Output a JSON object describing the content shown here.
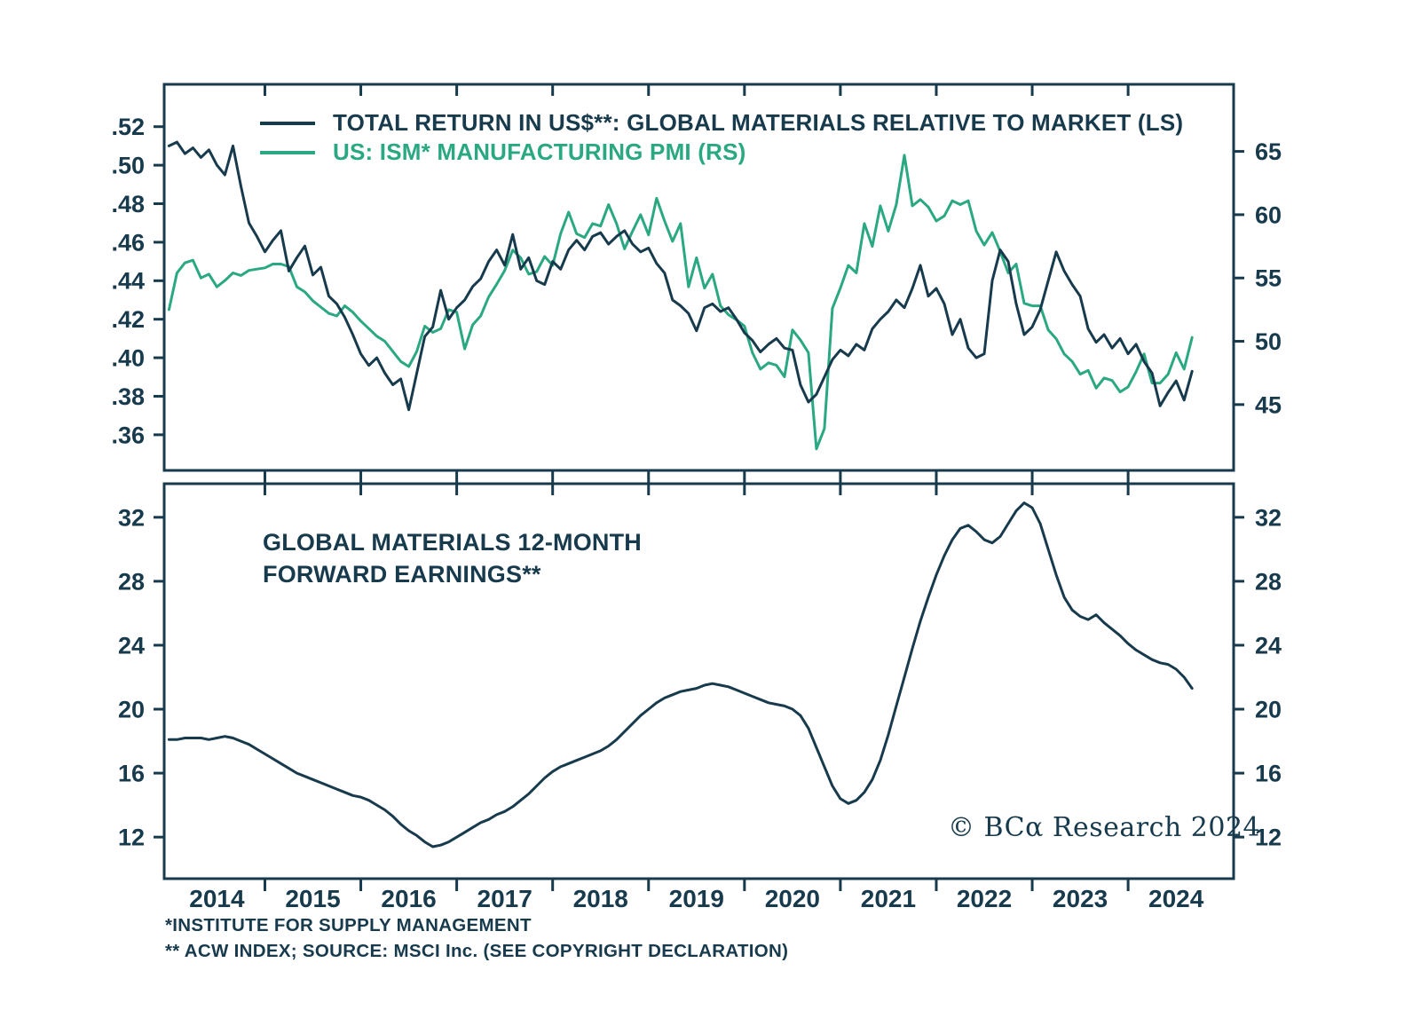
{
  "colors": {
    "dark": "#173a4d",
    "green": "#2aa882",
    "background": "#ffffff"
  },
  "legend": [
    {
      "label": "TOTAL RETURN IN US$**: GLOBAL MATERIALS RELATIVE TO MARKET (LS)",
      "color": "#173a4d"
    },
    {
      "label": "US: ISM* MANUFACTURING PMI (RS)",
      "color": "#2aa882"
    }
  ],
  "annotations": {
    "bottom_panel_line1": "GLOBAL MATERIALS 12-MONTH",
    "bottom_panel_line2": "FORWARD EARNINGS**",
    "copyright": "© BCα Research 2024"
  },
  "footnotes": [
    "*INSTITUTE FOR SUPPLY MANAGEMENT",
    "** ACW INDEX; SOURCE: MSCI Inc. (SEE COPYRIGHT DECLARATION)"
  ],
  "chart_data": [
    {
      "type": "line",
      "panel": "top",
      "x_unit": "decimal_year_monthly",
      "x_start": 2013.5,
      "x_step": 0.0833333,
      "xlim": [
        2013.45,
        2024.6
      ],
      "x_tick_years": [
        2014,
        2015,
        2016,
        2017,
        2018,
        2019,
        2020,
        2021,
        2022,
        2023,
        2024
      ],
      "grid": false,
      "legend_position": "top-left",
      "left_axis": {
        "lim": [
          0.3415,
          0.542
        ],
        "ticks": [
          0.52,
          0.5,
          0.48,
          0.46,
          0.44,
          0.42,
          0.4,
          0.38,
          0.36
        ],
        "tick_labels": [
          ".52",
          ".50",
          ".48",
          ".46",
          ".44",
          ".42",
          ".40",
          ".38",
          ".36"
        ]
      },
      "right_axis": {
        "lim": [
          39.8,
          70.3
        ],
        "ticks": [
          65,
          60,
          55,
          50,
          45
        ],
        "tick_labels": [
          "65",
          "60",
          "55",
          "50",
          "45"
        ]
      },
      "series": [
        {
          "name": "TOTAL RETURN IN US$**: GLOBAL MATERIALS RELATIVE TO MARKET (LS)",
          "axis": "left",
          "color": "#173a4d",
          "values": [
            0.51,
            0.512,
            0.506,
            0.509,
            0.504,
            0.508,
            0.5,
            0.495,
            0.51,
            0.489,
            0.47,
            0.463,
            0.455,
            0.461,
            0.466,
            0.445,
            0.452,
            0.458,
            0.443,
            0.447,
            0.432,
            0.428,
            0.421,
            0.412,
            0.402,
            0.396,
            0.4,
            0.392,
            0.386,
            0.389,
            0.373,
            0.392,
            0.411,
            0.416,
            0.435,
            0.42,
            0.426,
            0.43,
            0.437,
            0.441,
            0.45,
            0.456,
            0.448,
            0.464,
            0.446,
            0.452,
            0.44,
            0.438,
            0.45,
            0.446,
            0.456,
            0.461,
            0.456,
            0.463,
            0.465,
            0.459,
            0.463,
            0.466,
            0.459,
            0.455,
            0.457,
            0.449,
            0.444,
            0.43,
            0.427,
            0.423,
            0.414,
            0.426,
            0.428,
            0.424,
            0.426,
            0.42,
            0.413,
            0.409,
            0.403,
            0.407,
            0.41,
            0.405,
            0.404,
            0.386,
            0.377,
            0.381,
            0.39,
            0.399,
            0.404,
            0.401,
            0.407,
            0.404,
            0.415,
            0.42,
            0.424,
            0.43,
            0.426,
            0.436,
            0.448,
            0.432,
            0.436,
            0.428,
            0.412,
            0.42,
            0.405,
            0.4,
            0.402,
            0.44,
            0.456,
            0.45,
            0.428,
            0.412,
            0.416,
            0.425,
            0.44,
            0.455,
            0.445,
            0.438,
            0.432,
            0.415,
            0.408,
            0.412,
            0.405,
            0.41,
            0.402,
            0.407,
            0.398,
            0.392,
            0.375,
            0.382,
            0.388,
            0.378,
            0.393
          ]
        },
        {
          "name": "US: ISM* MANUFACTURING PMI (RS)",
          "axis": "right",
          "color": "#2aa882",
          "values": [
            52.5,
            55.4,
            56.2,
            56.4,
            55.0,
            55.3,
            54.3,
            54.8,
            55.4,
            55.2,
            55.6,
            55.7,
            55.8,
            56.1,
            56.1,
            55.9,
            54.3,
            53.9,
            53.2,
            52.7,
            52.2,
            52.0,
            52.8,
            52.3,
            51.6,
            51.0,
            50.4,
            50.0,
            49.2,
            48.4,
            48.0,
            49.2,
            51.2,
            50.7,
            51.0,
            52.5,
            52.3,
            49.4,
            51.3,
            52.0,
            53.5,
            54.5,
            55.6,
            57.2,
            56.6,
            55.3,
            55.5,
            56.7,
            56.0,
            58.5,
            60.2,
            58.5,
            58.2,
            59.3,
            59.1,
            60.8,
            59.3,
            57.3,
            58.7,
            60.0,
            58.4,
            61.3,
            59.5,
            57.9,
            59.3,
            54.3,
            56.6,
            54.2,
            55.3,
            52.8,
            52.1,
            51.7,
            51.2,
            49.1,
            47.8,
            48.3,
            48.1,
            47.2,
            50.9,
            50.1,
            49.1,
            41.5,
            43.1,
            52.6,
            54.2,
            56.0,
            55.4,
            59.3,
            57.5,
            60.7,
            58.7,
            60.8,
            64.7,
            60.7,
            61.2,
            60.6,
            59.5,
            59.9,
            61.1,
            60.8,
            61.1,
            58.7,
            57.6,
            58.6,
            57.1,
            55.4,
            56.1,
            53.0,
            52.8,
            52.8,
            50.9,
            50.2,
            49.0,
            48.4,
            47.4,
            47.7,
            46.3,
            47.1,
            46.9,
            46.0,
            46.4,
            47.6,
            49.0,
            46.7,
            46.7,
            47.4,
            49.1,
            47.8,
            50.3
          ]
        }
      ]
    },
    {
      "type": "line",
      "panel": "bottom",
      "label": "GLOBAL MATERIALS 12-MONTH FORWARD EARNINGS**",
      "x_unit": "decimal_year_monthly",
      "x_start": 2013.5,
      "x_step": 0.0833333,
      "xlim": [
        2013.45,
        2024.6
      ],
      "x_tick_years": [
        2014,
        2015,
        2016,
        2017,
        2018,
        2019,
        2020,
        2021,
        2022,
        2023,
        2024
      ],
      "grid": false,
      "ylim": [
        9.4,
        34.1
      ],
      "yticks": [
        32,
        28,
        24,
        20,
        16,
        12
      ],
      "ytick_labels": [
        "32",
        "28",
        "24",
        "20",
        "16",
        "12"
      ],
      "series": [
        {
          "name": "GLOBAL MATERIALS 12-MONTH FORWARD EARNINGS**",
          "axis": "both",
          "color": "#173a4d",
          "values": [
            18.1,
            18.1,
            18.2,
            18.2,
            18.2,
            18.1,
            18.2,
            18.3,
            18.2,
            18.0,
            17.8,
            17.5,
            17.2,
            16.9,
            16.6,
            16.3,
            16.0,
            15.8,
            15.6,
            15.4,
            15.2,
            15.0,
            14.8,
            14.6,
            14.5,
            14.3,
            14.0,
            13.7,
            13.3,
            12.8,
            12.4,
            12.1,
            11.7,
            11.4,
            11.5,
            11.7,
            12.0,
            12.3,
            12.6,
            12.9,
            13.1,
            13.4,
            13.6,
            13.9,
            14.3,
            14.7,
            15.2,
            15.7,
            16.1,
            16.4,
            16.6,
            16.8,
            17.0,
            17.2,
            17.4,
            17.7,
            18.1,
            18.6,
            19.1,
            19.6,
            20.0,
            20.4,
            20.7,
            20.9,
            21.1,
            21.2,
            21.3,
            21.5,
            21.6,
            21.5,
            21.4,
            21.2,
            21.0,
            20.8,
            20.6,
            20.4,
            20.3,
            20.2,
            20.0,
            19.6,
            18.8,
            17.6,
            16.4,
            15.2,
            14.4,
            14.1,
            14.3,
            14.8,
            15.6,
            16.8,
            18.4,
            20.2,
            22.0,
            23.8,
            25.5,
            27.0,
            28.4,
            29.6,
            30.6,
            31.3,
            31.5,
            31.1,
            30.6,
            30.4,
            30.8,
            31.6,
            32.4,
            32.9,
            32.6,
            31.6,
            30.0,
            28.4,
            27.0,
            26.2,
            25.8,
            25.6,
            25.9,
            25.4,
            25.0,
            24.6,
            24.1,
            23.7,
            23.4,
            23.1,
            22.9,
            22.8,
            22.5,
            22.0,
            21.3
          ]
        }
      ]
    }
  ]
}
